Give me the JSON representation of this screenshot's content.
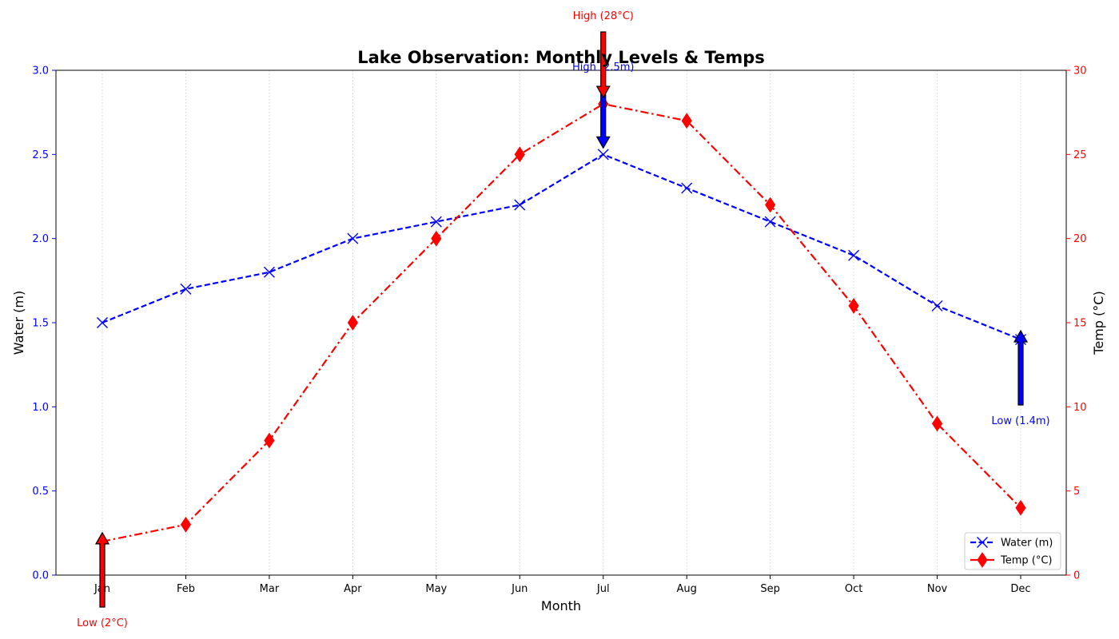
{
  "chart_data": {
    "type": "line",
    "title": "Lake Observation: Monthly Levels & Temps",
    "xlabel": "Month",
    "ylabel_left": "Water (m)",
    "ylabel_right": "Temp (°C)",
    "categories": [
      "Jan",
      "Feb",
      "Mar",
      "Apr",
      "May",
      "Jun",
      "Jul",
      "Aug",
      "Sep",
      "Oct",
      "Nov",
      "Dec"
    ],
    "ylim_left": [
      0,
      3.0
    ],
    "ylim_right": [
      0,
      30
    ],
    "yticks_left": [
      "0.0",
      "0.5",
      "1.0",
      "1.5",
      "2.0",
      "2.5",
      "3.0"
    ],
    "yticks_right": [
      "0",
      "5",
      "10",
      "15",
      "20",
      "25",
      "30"
    ],
    "grid": "vertical dotted",
    "legend_position": "lower right",
    "series": [
      {
        "name": "Water (m)",
        "axis": "left",
        "color": "#0000ff",
        "marker": "x",
        "linestyle": "dashed",
        "values": [
          1.5,
          1.7,
          1.8,
          2.0,
          2.1,
          2.2,
          2.5,
          2.3,
          2.1,
          1.9,
          1.6,
          1.4
        ]
      },
      {
        "name": "Temp (°C)",
        "axis": "right",
        "color": "#ff0000",
        "marker": "diamond",
        "linestyle": "dashdot",
        "values": [
          2,
          3,
          8,
          15,
          20,
          25,
          28,
          27,
          22,
          16,
          9,
          4
        ]
      }
    ],
    "annotations": [
      {
        "text": "High (2.5m)",
        "series": "Water (m)",
        "category": "Jul",
        "value": 2.5,
        "color": "#0000ff"
      },
      {
        "text": "Low (1.4m)",
        "series": "Water (m)",
        "category": "Dec",
        "value": 1.4,
        "color": "#0000ff"
      },
      {
        "text": "High (28°C)",
        "series": "Temp (°C)",
        "category": "Jul",
        "value": 28,
        "color": "#ff0000"
      },
      {
        "text": "Low (2°C)",
        "series": "Temp (°C)",
        "category": "Jan",
        "value": 2,
        "color": "#ff0000"
      }
    ]
  }
}
